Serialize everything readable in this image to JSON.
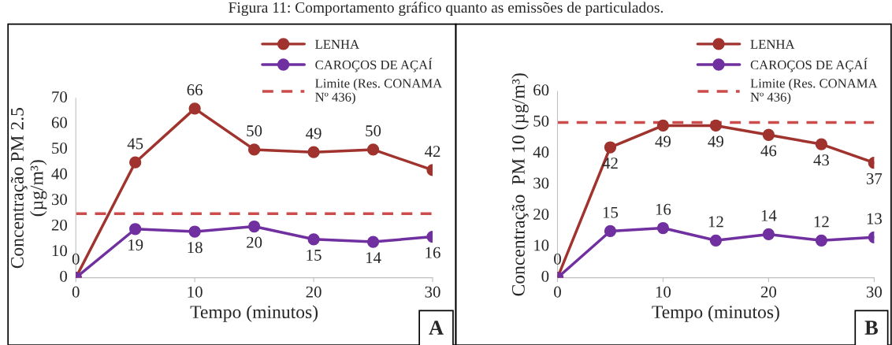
{
  "chart_data": [
    {
      "type": "line",
      "title": "Figura 11: Comportamento gráfico quanto as emissões de particulados.",
      "xlabel": "Tempo (minutos)",
      "ylabel": "Concentração PM 2.5\n(µg/m³)",
      "x": [
        0,
        5,
        10,
        15,
        20,
        25,
        30
      ],
      "series": [
        {
          "name": "LENHA",
          "color": "#a0332e",
          "values": [
            0,
            45,
            66,
            50,
            49,
            50,
            42
          ],
          "value_labels": [
            "0",
            "45",
            "66",
            "50",
            "49",
            "50",
            "42"
          ]
        },
        {
          "name": "CAROÇOS DE AÇAÍ",
          "color": "#7030a0",
          "values": [
            0,
            19,
            18,
            20,
            15,
            14,
            16
          ],
          "value_labels": [
            null,
            "19",
            "18",
            "20",
            "15",
            "14",
            "16"
          ]
        }
      ],
      "ref_lines": [
        {
          "axis": "y",
          "value": 25,
          "label": "Limite (Res. CONAMA\nNº 436)",
          "color": "#cc4c4c",
          "line_style": "dashed"
        }
      ],
      "xlim": [
        0,
        30
      ],
      "xticks": [
        0,
        10,
        20,
        30
      ],
      "ylim": [
        0,
        70
      ],
      "yticks": [
        0,
        10,
        20,
        30,
        40,
        50,
        60,
        70
      ],
      "marker": "circle",
      "legend": "top right",
      "grid": false,
      "annotations": [
        "A"
      ]
    },
    {
      "type": "line",
      "xlabel": "Tempo (minutos)",
      "ylabel": "Concentração  PM 10 (µg/m³)",
      "x": [
        0,
        5,
        10,
        15,
        20,
        25,
        30
      ],
      "series": [
        {
          "name": "LENHA",
          "color": "#a0332e",
          "values": [
            0,
            42,
            49,
            49,
            46,
            43,
            37
          ],
          "value_labels": [
            "0",
            "42",
            "49",
            "49",
            "46",
            "43",
            "37"
          ]
        },
        {
          "name": "CAROÇOS DE AÇAÍ",
          "color": "#7030a0",
          "values": [
            0,
            15,
            16,
            12,
            14,
            12,
            13
          ],
          "value_labels": [
            null,
            "15",
            "16",
            "12",
            "14",
            "12",
            "13"
          ]
        }
      ],
      "ref_lines": [
        {
          "axis": "y",
          "value": 50,
          "label": "Limite (Res. CONAMA\nNº 436)",
          "color": "#cc4c4c",
          "line_style": "dashed"
        }
      ],
      "xlim": [
        0,
        30
      ],
      "xticks": [
        0,
        10,
        20,
        30
      ],
      "ylim": [
        0,
        60
      ],
      "yticks": [
        0,
        10,
        20,
        30,
        40,
        50,
        60
      ],
      "marker": "circle",
      "legend": "top right",
      "grid": false,
      "annotations": [
        "B"
      ]
    }
  ]
}
